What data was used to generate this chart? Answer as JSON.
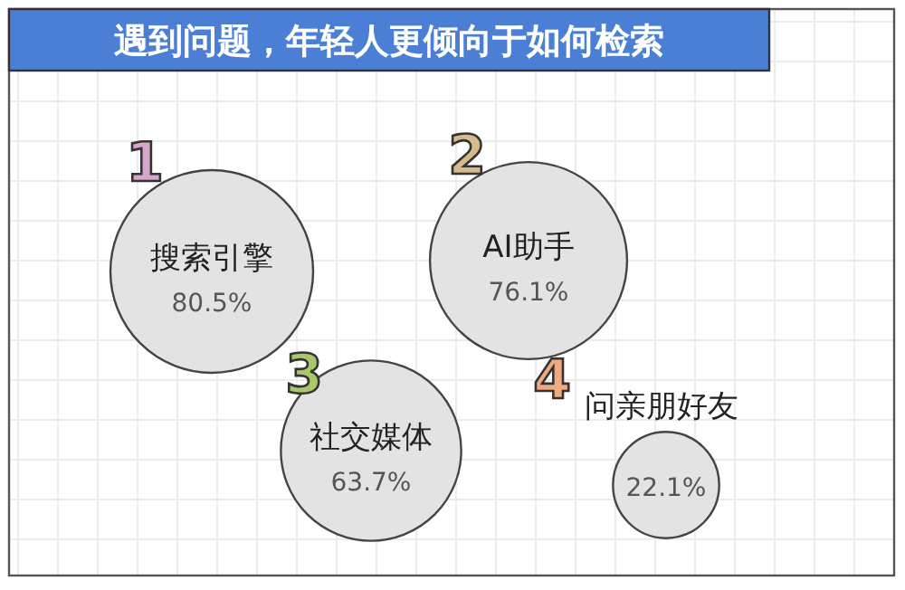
{
  "chart_data": {
    "type": "other",
    "title": "遇到问题，年轻人更倾向于如何检索",
    "categories": [
      "搜索引擎",
      "AI助手",
      "社交媒体",
      "问亲朋好友"
    ],
    "values": [
      80.5,
      76.1,
      63.7,
      22.1
    ],
    "value_labels": [
      "80.5%",
      "76.1%",
      "63.7%",
      "22.1%"
    ],
    "color": "#e3e3e3",
    "annotations": [
      {
        "text": "1",
        "x": "搜索引擎"
      },
      {
        "text": "2",
        "x": "AI助手"
      },
      {
        "text": "3",
        "x": "社交媒体"
      },
      {
        "text": "4",
        "x": "问亲朋好友"
      }
    ]
  }
}
